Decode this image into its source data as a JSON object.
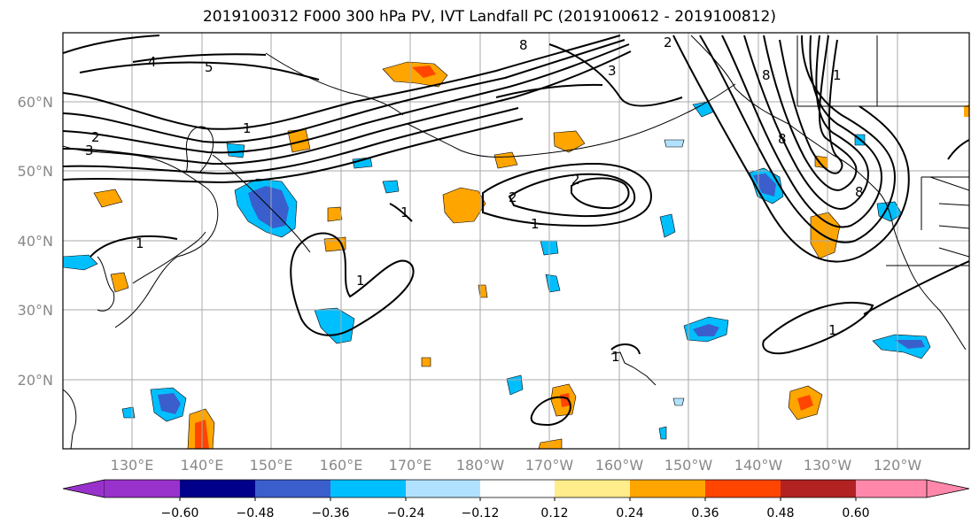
{
  "title": "2019100312 F000 300 hPa PV, IVT Landfall PC (2019100612 - 2019100812)",
  "lat_labels": [
    "60°N",
    "50°N",
    "40°N",
    "30°N",
    "20°N"
  ],
  "lon_labels": [
    "130°E",
    "140°E",
    "150°E",
    "160°E",
    "170°E",
    "180°W",
    "170°W",
    "160°W",
    "150°W",
    "140°W",
    "130°W",
    "120°W"
  ],
  "colorbar": {
    "ticks": [
      "−0.60",
      "−0.48",
      "−0.36",
      "−0.24",
      "−0.12",
      "0.12",
      "0.24",
      "0.36",
      "0.48",
      "0.60"
    ],
    "colors": [
      "#9932cc",
      "#00008b",
      "#3a5fcd",
      "#00bfff",
      "#b0e2ff",
      "#ffffff",
      "#ffec8b",
      "#ffa500",
      "#ff4500",
      "#b22222",
      "#ff88aa"
    ]
  },
  "contour_labels": [
    "4",
    "5",
    "3",
    "2",
    "1",
    "8",
    "2",
    "3",
    "1",
    "8",
    "2",
    "1",
    "2",
    "1",
    "1",
    "8",
    "8",
    "1",
    "1",
    "1"
  ]
}
